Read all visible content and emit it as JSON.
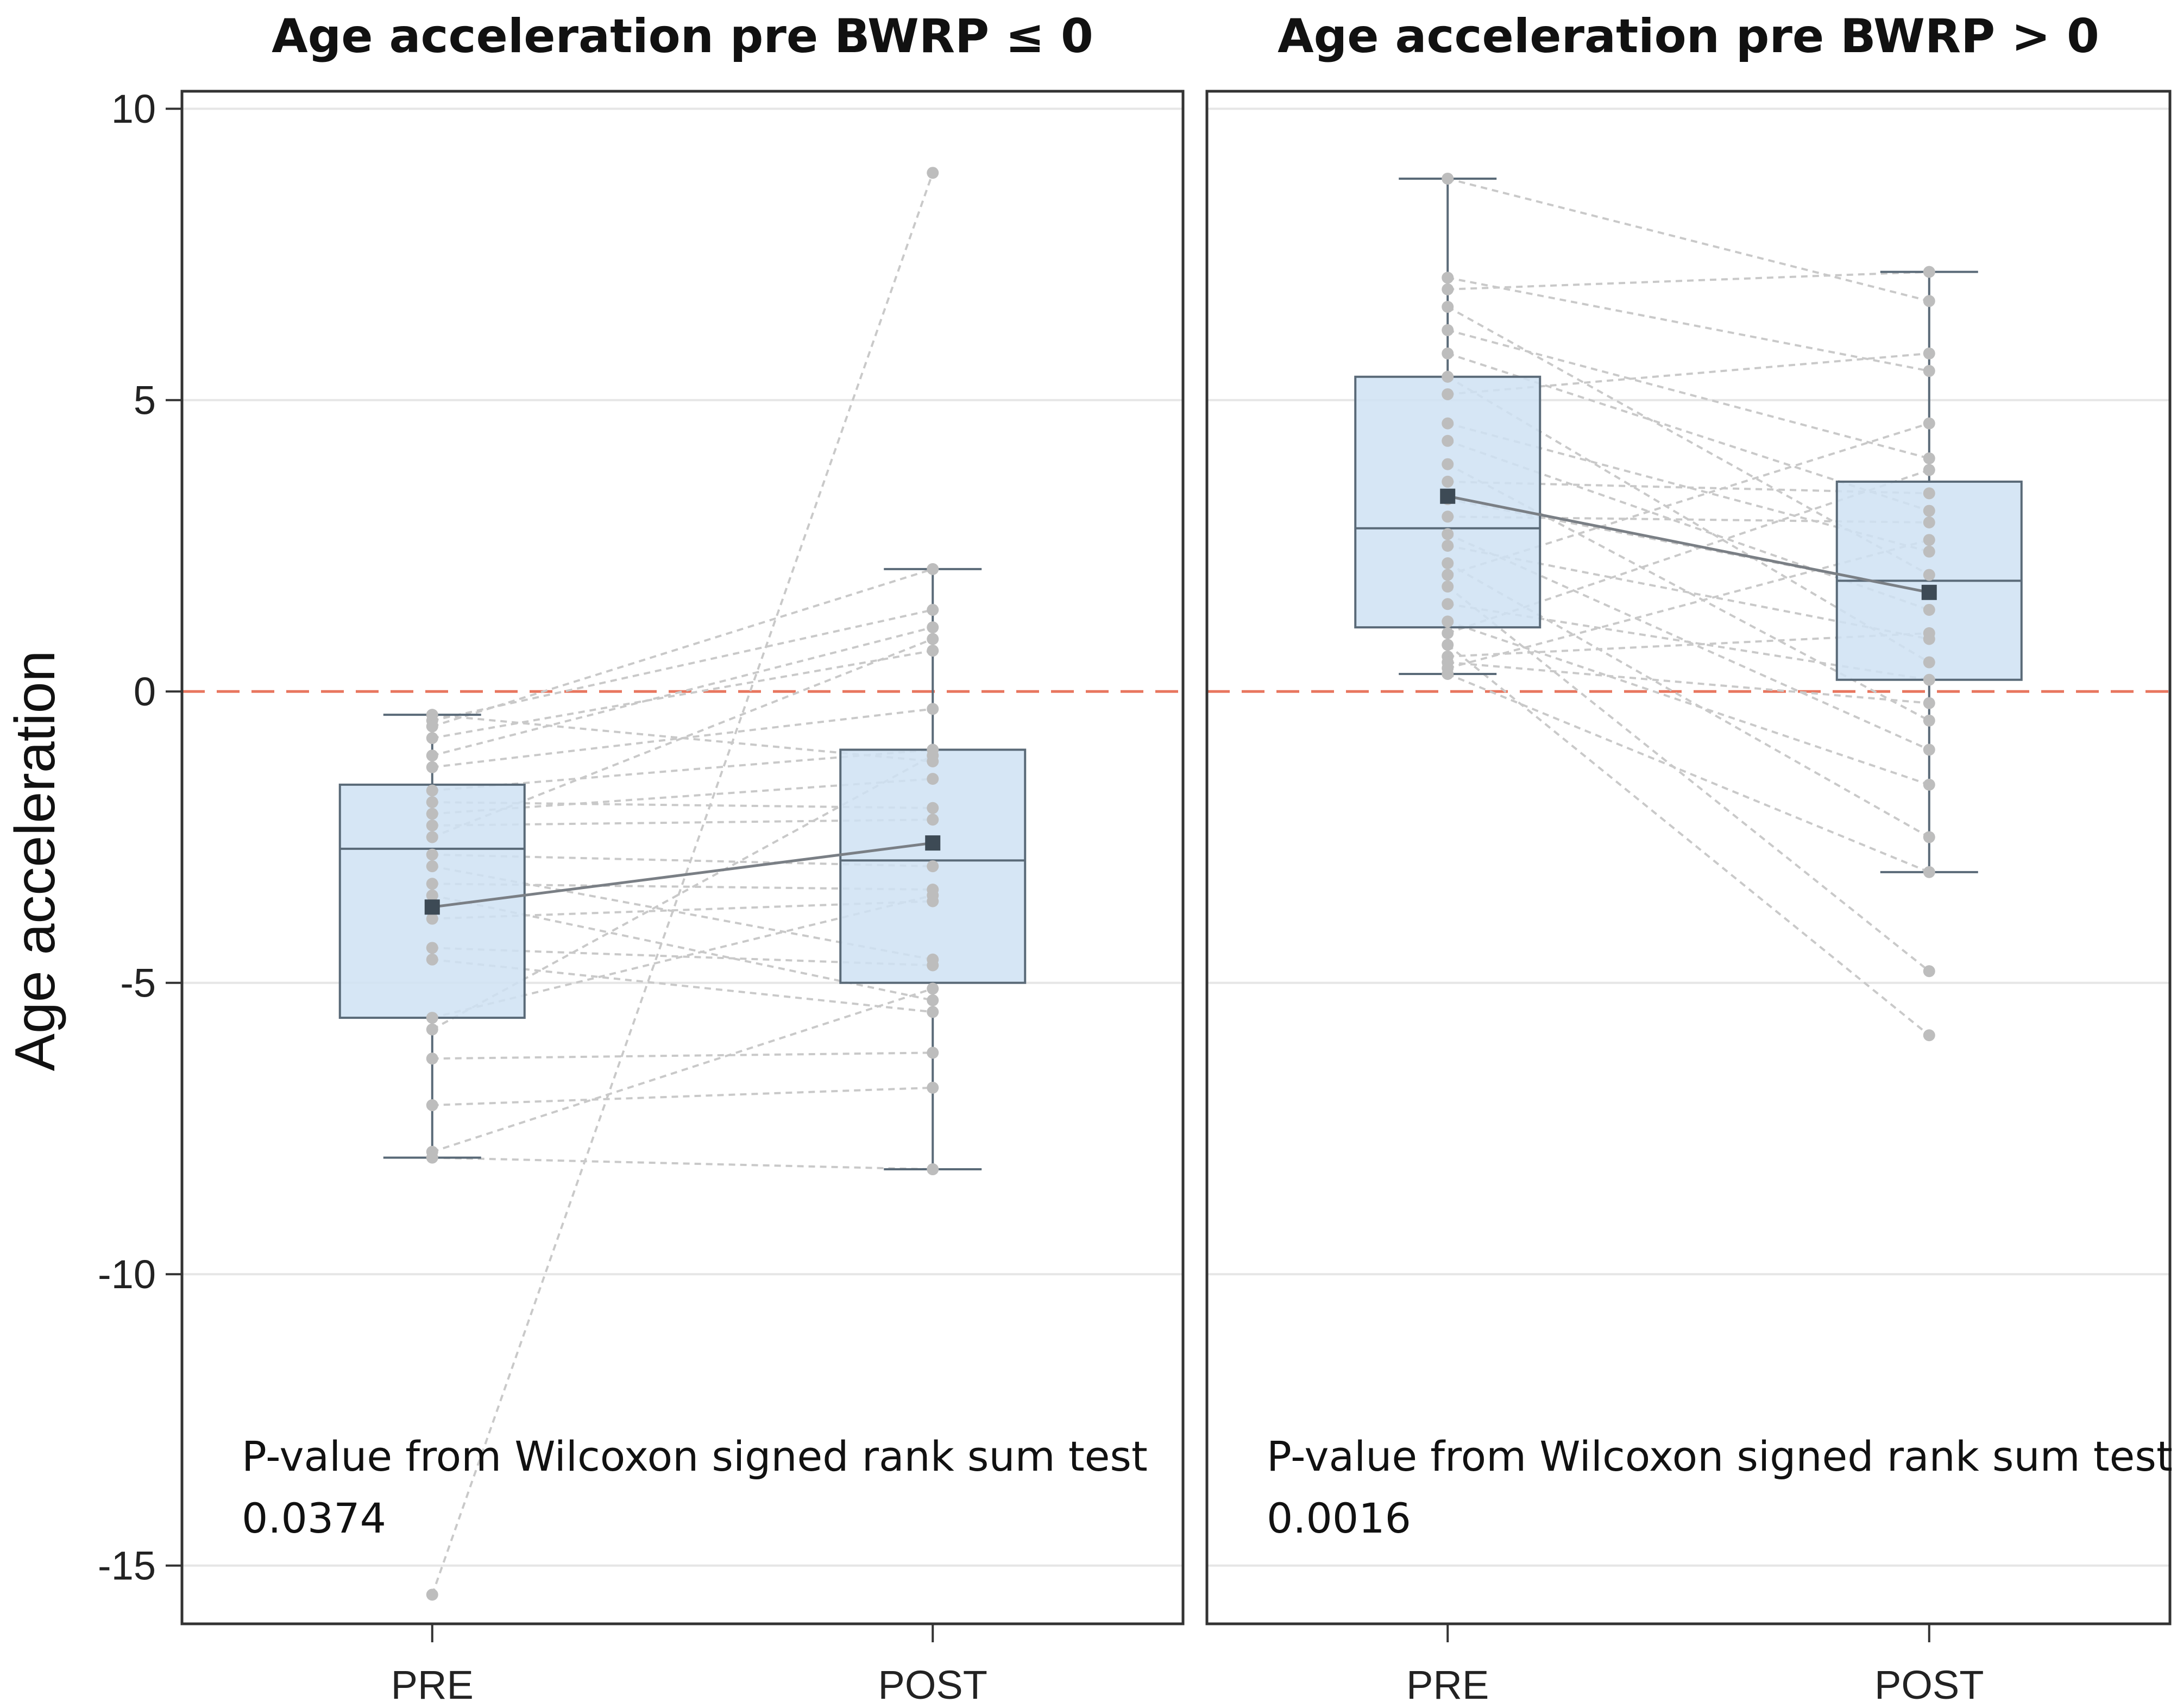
{
  "chart_data": {
    "type": "box",
    "ylabel": "Age acceleration",
    "ylim": [
      -16.0,
      10.3
    ],
    "yticks": [
      10,
      5,
      0,
      -5,
      -10,
      -15
    ],
    "reference_line": {
      "y": 0,
      "style": "dashed",
      "color": "#e8765f"
    },
    "colors": {
      "box_fill": "#cfe2f3",
      "box_stroke": "#5a6a78",
      "point": "#bdbdbd",
      "mean_marker": "#3d4a55",
      "grid": "#e6e6e6"
    },
    "panels": [
      {
        "title": "Age acceleration pre BWRP ≤ 0",
        "categories": [
          "PRE",
          "POST"
        ],
        "boxes": [
          {
            "category": "PRE",
            "whisker_low": -8.0,
            "q1": -5.6,
            "median": -2.7,
            "q3": -1.6,
            "whisker_high": -0.4,
            "mean": -3.7
          },
          {
            "category": "POST",
            "whisker_low": -8.2,
            "q1": -5.0,
            "median": -2.9,
            "q3": -1.0,
            "whisker_high": 2.1,
            "mean": -2.6
          }
        ],
        "pairs": [
          [
            -15.5,
            8.9
          ],
          [
            -0.4,
            -1.2
          ],
          [
            -0.5,
            1.4
          ],
          [
            -0.6,
            2.1
          ],
          [
            -0.8,
            0.7
          ],
          [
            -1.1,
            1.1
          ],
          [
            -1.3,
            -0.3
          ],
          [
            -1.7,
            -1.0
          ],
          [
            -1.9,
            -2.0
          ],
          [
            -2.1,
            -1.5
          ],
          [
            -2.3,
            -2.2
          ],
          [
            -2.5,
            0.9
          ],
          [
            -2.8,
            -3.0
          ],
          [
            -3.0,
            -4.6
          ],
          [
            -3.3,
            -3.4
          ],
          [
            -3.5,
            -5.3
          ],
          [
            -3.7,
            -2.6
          ],
          [
            -3.9,
            -3.6
          ],
          [
            -4.4,
            -4.7
          ],
          [
            -4.6,
            -5.5
          ],
          [
            -5.6,
            -3.5
          ],
          [
            -5.8,
            -1.1
          ],
          [
            -6.3,
            -6.2
          ],
          [
            -7.1,
            -6.8
          ],
          [
            -7.9,
            -5.1
          ],
          [
            -8.0,
            -8.2
          ]
        ],
        "pvalue_label": "P-value from Wilcoxon signed rank sum test",
        "pvalue": "0.0374"
      },
      {
        "title": "Age acceleration pre BWRP > 0",
        "categories": [
          "PRE",
          "POST"
        ],
        "boxes": [
          {
            "category": "PRE",
            "whisker_low": 0.3,
            "q1": 1.1,
            "median": 2.8,
            "q3": 5.4,
            "whisker_high": 8.8,
            "mean": 3.35
          },
          {
            "category": "POST",
            "whisker_low": -3.1,
            "q1": 0.2,
            "median": 1.9,
            "q3": 3.6,
            "whisker_high": 7.2,
            "mean": 1.7
          }
        ],
        "pairs": [
          [
            8.8,
            6.7
          ],
          [
            7.1,
            5.5
          ],
          [
            6.9,
            7.2
          ],
          [
            6.6,
            2.0
          ],
          [
            6.2,
            4.0
          ],
          [
            5.8,
            3.1
          ],
          [
            5.4,
            0.5
          ],
          [
            5.1,
            5.8
          ],
          [
            4.6,
            2.4
          ],
          [
            4.3,
            1.4
          ],
          [
            3.9,
            -0.5
          ],
          [
            3.6,
            3.4
          ],
          [
            3.3,
            1.7
          ],
          [
            3.0,
            2.9
          ],
          [
            2.7,
            -1.0
          ],
          [
            2.5,
            0.9
          ],
          [
            2.2,
            -2.5
          ],
          [
            2.0,
            4.6
          ],
          [
            1.8,
            -4.8
          ],
          [
            1.5,
            0.2
          ],
          [
            1.2,
            -1.6
          ],
          [
            1.0,
            3.8
          ],
          [
            0.8,
            -5.9
          ],
          [
            0.6,
            1.0
          ],
          [
            0.5,
            -0.2
          ],
          [
            0.4,
            2.6
          ],
          [
            0.3,
            -3.1
          ]
        ],
        "pvalue_label": "P-value from Wilcoxon signed rank sum test",
        "pvalue": "0.0016"
      }
    ]
  }
}
